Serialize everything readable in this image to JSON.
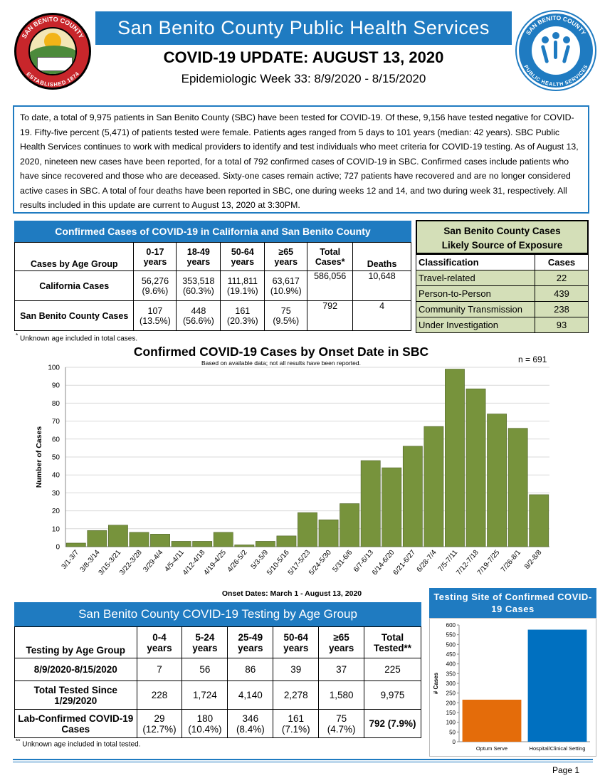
{
  "header": {
    "org_title": "San Benito County Public Health Services",
    "update_title": "COVID-19 UPDATE: AUGUST 13, 2020",
    "week_title": "Epidemiologic Week 33: 8/9/2020 - 8/15/2020",
    "seal_left_text": "SAN BENITO COUNTY",
    "seal_left_bottom": "ESTABLISHED 1874",
    "seal_right_text": "SAN BENITO COUNTY",
    "seal_right_bottom": "PUBLIC HEALTH SERVICES",
    "colors": {
      "brand_blue": "#1f7bc1",
      "bar_green": "#77933c",
      "orange": "#e46c0a"
    }
  },
  "summary": "To date, a total of 9,975 patients in San Benito County (SBC) have been tested for COVID-19.  Of these, 9,156 have tested negative for COVID-19.  Fifty-five percent (5,471) of patients tested were female. Patients ages ranged from 5 days to 101 years (median: 42 years).  SBC Public Health Services continues to work with medical providers to identify and test individuals who meet criteria for COVID-19 testing.  As of August 13, 2020, nineteen new cases have been reported, for a total of 792 confirmed cases of COVID-19 in SBC.  Confirmed cases include patients who have since recovered and those who are deceased.  Sixty-one cases remain active; 727 patients have recovered and are no longer considered active cases in SBC.  A total of four deaths have been reported in SBC, one during weeks 12 and 14, and two during week 31, respectively.  All results included in this update are current to August 13, 2020 at 3:30PM.",
  "ca_table": {
    "title": "Confirmed Cases of COVID-19 in California and San Benito County",
    "row_header": "Cases by Age Group",
    "columns": [
      {
        "top": "0-17",
        "bottom": "years"
      },
      {
        "top": "18-49",
        "bottom": "years"
      },
      {
        "top": "50-64",
        "bottom": "years"
      },
      {
        "top": "≥65",
        "bottom": "years"
      },
      {
        "top": "Total",
        "bottom": "Cases*"
      },
      {
        "top": "",
        "bottom": "Deaths"
      }
    ],
    "rows": [
      {
        "label": "California Cases",
        "values": [
          "56,276",
          "353,518",
          "111,811",
          "63,617",
          "586,056",
          "10,648"
        ],
        "pcts": [
          "(9.6%)",
          "(60.3%)",
          "(19.1%)",
          "(10.9%)",
          "",
          ""
        ]
      },
      {
        "label": "San Benito County Cases",
        "values": [
          "107",
          "448",
          "161",
          "75",
          "792",
          "4"
        ],
        "pcts": [
          "(13.5%)",
          "(56.6%)",
          "(20.3%)",
          "(9.5%)",
          "",
          ""
        ]
      }
    ],
    "note_mark": "*",
    "note": "Unknown age included in total cases."
  },
  "source_table": {
    "title_line1": "San Benito County Cases",
    "title_line2": "Likely Source of Exposure",
    "col1": "Classification",
    "col2": "Cases",
    "rows": [
      {
        "label": "Travel-related",
        "value": "22"
      },
      {
        "label": "Person-to-Person",
        "value": "439"
      },
      {
        "label": "Community Transmission",
        "value": "238"
      },
      {
        "label": "Under Investigation",
        "value": "93"
      }
    ]
  },
  "chart_data": [
    {
      "type": "bar",
      "title": "Confirmed COVID-19 Cases by Onset Date in SBC",
      "subtitle": "Based on available data; not all results have been reported.",
      "annotation": "n = 691",
      "xlabel": "Onset Dates: March 1 - August 13, 2020",
      "ylabel": "Number of Cases",
      "ylim": [
        0,
        100
      ],
      "yticks": [
        0,
        10,
        20,
        30,
        40,
        50,
        60,
        70,
        80,
        90,
        100
      ],
      "categories": [
        "3/1-3/7",
        "3/8-3/14",
        "3/15-3/21",
        "3/22-3/28",
        "3/29-4/4",
        "4/5-4/11",
        "4/12-4/18",
        "4/19-4/25",
        "4/26-5/2",
        "5/3-5/9",
        "5/10-5/16",
        "5/17-5/23",
        "5/24-5/30",
        "5/31-6/6",
        "6/7-6/13",
        "6/14-6/20",
        "6/21-6/27",
        "6/28-7/4",
        "7/5-7/11",
        "7/12-7/18",
        "7/19-7/25",
        "7/26-8/1",
        "8/2-8/8"
      ],
      "values": [
        2,
        9,
        12,
        8,
        7,
        3,
        3,
        8,
        1,
        3,
        6,
        19,
        15,
        24,
        48,
        44,
        56,
        67,
        99,
        88,
        74,
        66,
        29
      ],
      "grid": true,
      "color": "#77933c"
    },
    {
      "type": "bar",
      "title": "Testing Site of Confirmed COVID-19 Cases",
      "ylabel": "# Cases",
      "ylim": [
        0,
        600
      ],
      "yticks": [
        0,
        50,
        100,
        150,
        200,
        250,
        300,
        350,
        400,
        450,
        500,
        550,
        600
      ],
      "categories": [
        "Optum Serve",
        "Hospital/Clinical Setting"
      ],
      "values": [
        216,
        576
      ],
      "colors": [
        "#e46c0a",
        "#0070c0"
      ]
    }
  ],
  "testing_table": {
    "title": "San Benito County COVID-19 Testing by Age Group",
    "row_header": "Testing by Age Group",
    "columns": [
      {
        "top": "0-4",
        "bottom": "years"
      },
      {
        "top": "5-24",
        "bottom": "years"
      },
      {
        "top": "25-49",
        "bottom": "years"
      },
      {
        "top": "50-64",
        "bottom": "years"
      },
      {
        "top": "≥65",
        "bottom": "years"
      },
      {
        "top": "Total",
        "bottom": "Tested**"
      }
    ],
    "rows": [
      {
        "label": "8/9/2020-8/15/2020",
        "values": [
          "7",
          "56",
          "86",
          "39",
          "37",
          "225"
        ],
        "pcts": [
          "",
          "",
          "",
          "",
          "",
          ""
        ]
      },
      {
        "label": "Total Tested Since 1/29/2020",
        "values": [
          "228",
          "1,724",
          "4,140",
          "2,278",
          "1,580",
          "9,975"
        ],
        "pcts": [
          "",
          "",
          "",
          "",
          "",
          ""
        ]
      },
      {
        "label": "Lab-Confirmed COVID-19 Cases",
        "values": [
          "29",
          "180",
          "346",
          "161",
          "75",
          "792 (7.9%)"
        ],
        "pcts": [
          "(12.7%)",
          "(10.4%)",
          "(8.4%)",
          "(7.1%)",
          "(4.7%)",
          ""
        ]
      }
    ],
    "note_mark": "**",
    "note": "Unknown age included in total tested."
  },
  "footer": {
    "page": "Page 1"
  }
}
